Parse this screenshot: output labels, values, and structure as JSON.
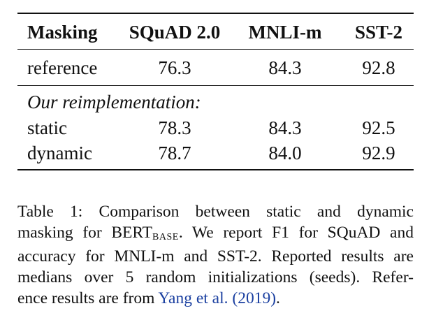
{
  "table": {
    "headers": [
      "Masking",
      "SQuAD 2.0",
      "MNLI-m",
      "SST-2"
    ],
    "reference_row": {
      "label": "reference",
      "values": [
        "76.3",
        "84.3",
        "92.8"
      ]
    },
    "section_label": "Our reimplementation:",
    "rows": [
      {
        "label": "static",
        "values": [
          "78.3",
          "84.3",
          "92.5"
        ]
      },
      {
        "label": "dynamic",
        "values": [
          "78.7",
          "84.0",
          "92.9"
        ]
      }
    ]
  },
  "caption": {
    "line1": "Table 1:  Comparison between static and dynamic",
    "line2_a": "masking for BERT",
    "line2_sub": "BASE",
    "line2_b": ".  We report F1 for SQuAD and",
    "line3": "accuracy for MNLI-m and SST-2. Reported results are",
    "line4": "medians over 5 random initializations (seeds).  Refer-",
    "line5_a": "ence results are from ",
    "line5_cite": "Yang et al. (2019)",
    "line5_b": ".",
    "cite_color": "#1a3fa0"
  }
}
